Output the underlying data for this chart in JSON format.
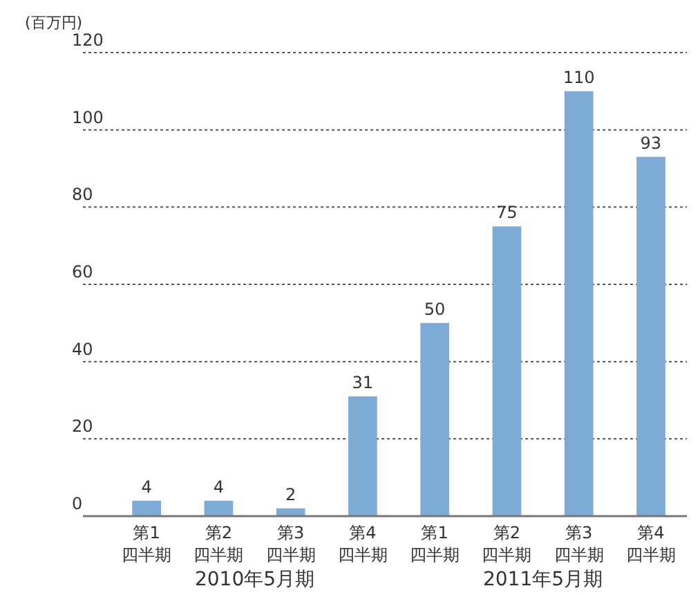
{
  "chart_data": {
    "type": "bar",
    "ylabel": "(百万円)",
    "categories": [
      "第1\n四半期",
      "第2\n四半期",
      "第3\n四半期",
      "第4\n四半期",
      "第1\n四半期",
      "第2\n四半期",
      "第3\n四半期",
      "第4\n四半期"
    ],
    "values": [
      4,
      4,
      2,
      31,
      50,
      75,
      110,
      93
    ],
    "color": "#7eaad6",
    "ylim": [
      0,
      120
    ],
    "yticks": [
      0,
      20,
      40,
      60,
      80,
      100,
      120
    ],
    "grid": "y",
    "data_labels": true,
    "annotations": [
      "2010年5月期",
      "2011年5月期"
    ]
  }
}
